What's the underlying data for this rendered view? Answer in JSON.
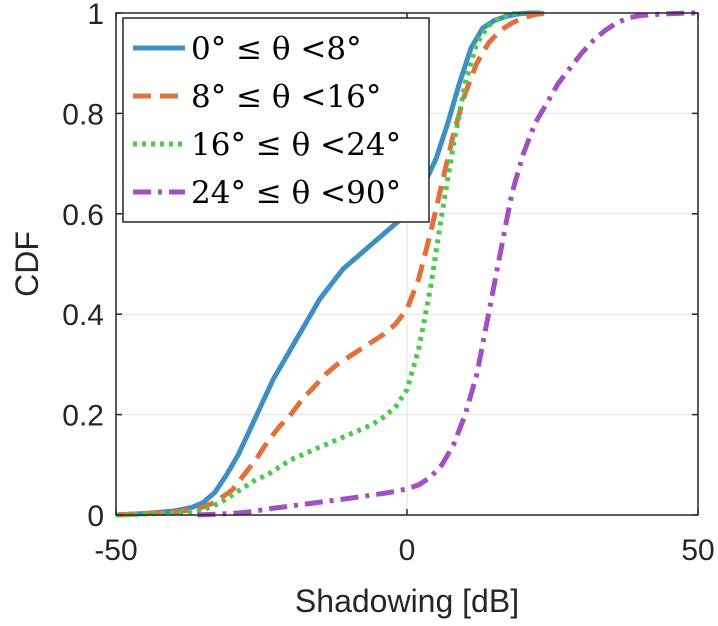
{
  "chart_data": {
    "type": "line",
    "xlabel": "Shadowing [dB]",
    "ylabel": "CDF",
    "xlim": [
      -50,
      50
    ],
    "ylim": [
      0,
      1
    ],
    "xticks": [
      -50,
      0,
      50
    ],
    "xtick_labels": [
      "-50",
      "0",
      "50"
    ],
    "yticks": [
      0,
      0.2,
      0.4,
      0.6,
      0.8,
      1
    ],
    "ytick_labels": [
      "0",
      "0.2",
      "0.4",
      "0.6",
      "0.8",
      "1"
    ],
    "grid": true,
    "legend_position": "top-left",
    "series": [
      {
        "name": "0° ≤ θ <8°",
        "color": "#3d8fc4",
        "dash": "solid",
        "x": [
          -50,
          -45,
          -40,
          -37,
          -35,
          -33,
          -31,
          -29,
          -27,
          -25,
          -23,
          -21,
          -19,
          -17,
          -15,
          -13,
          -11,
          -9,
          -7,
          -5,
          -3,
          -1,
          1,
          3,
          5,
          7,
          9,
          11,
          13,
          15,
          17,
          19,
          21,
          23
        ],
        "y": [
          0,
          0.003,
          0.008,
          0.015,
          0.025,
          0.045,
          0.08,
          0.12,
          0.17,
          0.22,
          0.27,
          0.31,
          0.35,
          0.39,
          0.43,
          0.46,
          0.49,
          0.51,
          0.53,
          0.55,
          0.57,
          0.59,
          0.62,
          0.66,
          0.71,
          0.78,
          0.86,
          0.93,
          0.97,
          0.985,
          0.993,
          0.998,
          1,
          1
        ]
      },
      {
        "name": "8° ≤ θ <16°",
        "color": "#e36f3a",
        "dash": "dashed",
        "x": [
          -50,
          -45,
          -40,
          -36,
          -33,
          -30,
          -28,
          -26,
          -24,
          -22,
          -20,
          -18,
          -16,
          -14,
          -12,
          -10,
          -8,
          -6,
          -4,
          -2,
          0,
          2,
          4,
          6,
          8,
          10,
          12,
          14,
          16,
          18,
          20,
          22,
          24
        ],
        "y": [
          0,
          0.003,
          0.006,
          0.012,
          0.025,
          0.05,
          0.08,
          0.11,
          0.145,
          0.175,
          0.2,
          0.23,
          0.255,
          0.28,
          0.3,
          0.315,
          0.33,
          0.345,
          0.36,
          0.38,
          0.41,
          0.47,
          0.56,
          0.66,
          0.76,
          0.84,
          0.9,
          0.94,
          0.965,
          0.98,
          0.99,
          0.997,
          1
        ]
      },
      {
        "name": "16° ≤ θ <24°",
        "color": "#4cc94b",
        "dash": "dotted",
        "x": [
          -50,
          -45,
          -40,
          -36,
          -34,
          -32,
          -30,
          -28,
          -26,
          -24,
          -22,
          -20,
          -18,
          -16,
          -14,
          -12,
          -10,
          -8,
          -6,
          -4,
          -2,
          0,
          2,
          4,
          6,
          8,
          10,
          12,
          14,
          16,
          18,
          20
        ],
        "y": [
          0,
          0.002,
          0.004,
          0.008,
          0.015,
          0.025,
          0.04,
          0.055,
          0.07,
          0.08,
          0.095,
          0.11,
          0.12,
          0.13,
          0.14,
          0.15,
          0.16,
          0.17,
          0.18,
          0.195,
          0.215,
          0.25,
          0.33,
          0.45,
          0.6,
          0.74,
          0.86,
          0.94,
          0.975,
          0.99,
          0.998,
          1
        ]
      },
      {
        "name": "24° ≤ θ <90°",
        "color": "#a34fc4",
        "dash": "dashdot",
        "x": [
          -36,
          -34,
          -32,
          -30,
          -28,
          -26,
          -24,
          -22,
          -20,
          -18,
          -16,
          -14,
          -12,
          -10,
          -8,
          -6,
          -4,
          -2,
          0,
          2,
          4,
          6,
          8,
          10,
          12,
          14,
          16,
          18,
          20,
          22,
          24,
          26,
          28,
          30,
          32,
          34,
          36,
          38,
          40,
          44,
          48,
          50
        ],
        "y": [
          0,
          0.001,
          0.002,
          0.003,
          0.005,
          0.008,
          0.012,
          0.015,
          0.018,
          0.021,
          0.024,
          0.027,
          0.03,
          0.033,
          0.036,
          0.04,
          0.043,
          0.047,
          0.052,
          0.06,
          0.075,
          0.1,
          0.14,
          0.2,
          0.28,
          0.4,
          0.52,
          0.64,
          0.72,
          0.78,
          0.82,
          0.86,
          0.89,
          0.92,
          0.945,
          0.965,
          0.98,
          0.99,
          0.995,
          0.998,
          1,
          1
        ]
      }
    ]
  }
}
